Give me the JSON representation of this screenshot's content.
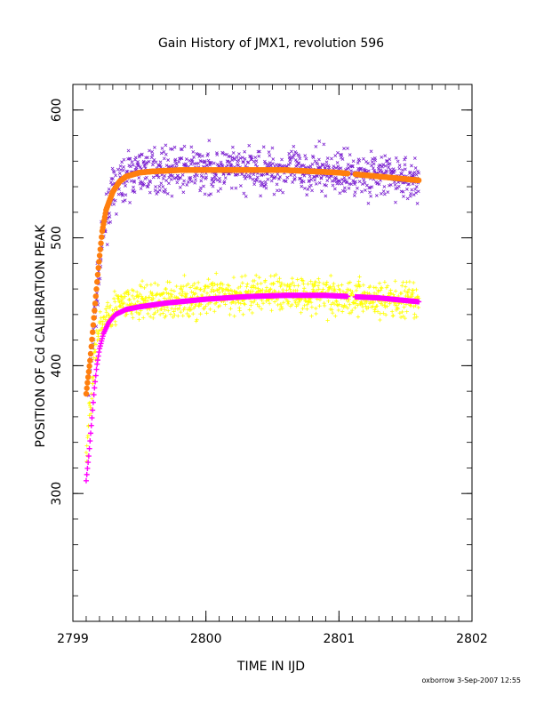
{
  "chart_data": {
    "type": "scatter",
    "title": "Gain History of JMX1, revolution 596",
    "xlabel": "TIME IN IJD",
    "ylabel": "POSITION OF Cd CALIBRATION PEAK",
    "xlim": [
      2799,
      2802
    ],
    "ylim": [
      200,
      620
    ],
    "x_ticks": [
      2799,
      2800,
      2801,
      2802
    ],
    "x_tick_labels": [
      "2799",
      "2800",
      "2801",
      "2802"
    ],
    "y_ticks": [
      300,
      400,
      500,
      600
    ],
    "y_tick_labels": [
      "300",
      "400",
      "500",
      "600"
    ],
    "grid": false,
    "legend": "none",
    "colors": {
      "upper_raw": "#7a1fd0",
      "upper_fit": "#ff7f0e",
      "lower_raw": "#ffff00",
      "lower_fit": "#ff00ff",
      "axis": "#000000"
    },
    "series": [
      {
        "kind": "raw",
        "marker": "x",
        "color_key": "upper_raw",
        "x": [
          2799.12,
          2799.15,
          2799.18,
          2799.21,
          2799.24,
          2799.28,
          2799.33,
          2799.4,
          2799.5,
          2799.6,
          2799.7,
          2799.8,
          2799.9,
          2800.0,
          2800.1,
          2800.2,
          2800.3,
          2800.4,
          2800.5,
          2800.6,
          2800.7,
          2800.8,
          2800.9,
          2801.0,
          2801.1,
          2801.2,
          2801.3,
          2801.4,
          2801.5,
          2801.6
        ],
        "y": [
          385,
          420,
          455,
          485,
          510,
          530,
          540,
          548,
          552,
          553,
          553,
          553,
          553,
          553,
          553,
          553,
          553,
          553,
          553,
          553,
          553,
          552,
          552,
          551,
          551,
          550,
          549,
          548,
          546,
          545
        ],
        "spread": 14
      },
      {
        "kind": "fit",
        "marker": "o",
        "color_key": "upper_fit",
        "x": [
          2799.1,
          2799.13,
          2799.16,
          2799.19,
          2799.22,
          2799.25,
          2799.3,
          2799.35,
          2799.4,
          2799.5,
          2799.6,
          2799.8,
          2800.0,
          2800.2,
          2800.4,
          2800.6,
          2800.8,
          2801.0,
          2801.1,
          2801.2,
          2801.4,
          2801.6
        ],
        "y": [
          378,
          405,
          440,
          475,
          505,
          522,
          536,
          544,
          548,
          551,
          552,
          553,
          553,
          553,
          553,
          553,
          552,
          551,
          550,
          549,
          547,
          545
        ]
      },
      {
        "kind": "raw",
        "marker": "+",
        "color_key": "lower_raw",
        "x": [
          2799.1,
          2799.13,
          2799.16,
          2799.2,
          2799.25,
          2799.3,
          2799.4,
          2799.5,
          2799.6,
          2799.7,
          2799.8,
          2799.9,
          2800.0,
          2800.1,
          2800.2,
          2800.3,
          2800.4,
          2800.5,
          2800.6,
          2800.7,
          2800.8,
          2800.9,
          2801.0,
          2801.1,
          2801.2,
          2801.3,
          2801.4,
          2801.5,
          2801.6
        ],
        "y": [
          325,
          370,
          405,
          425,
          440,
          445,
          448,
          450,
          450,
          451,
          452,
          452,
          453,
          454,
          455,
          456,
          457,
          457,
          457,
          456,
          456,
          455,
          455,
          454,
          453,
          452,
          451,
          450,
          450
        ],
        "spread": 12
      },
      {
        "kind": "fit",
        "marker": "+",
        "color_key": "lower_fit",
        "x": [
          2799.1,
          2799.12,
          2799.14,
          2799.16,
          2799.18,
          2799.2,
          2799.23,
          2799.27,
          2799.32,
          2799.4,
          2799.5,
          2799.7,
          2800.0,
          2800.3,
          2800.6,
          2800.9,
          2801.1,
          2801.3,
          2801.5,
          2801.6
        ],
        "y": [
          310,
          330,
          355,
          380,
          400,
          413,
          425,
          434,
          440,
          444,
          446,
          449,
          452,
          454,
          455,
          455,
          454,
          453,
          451,
          450
        ]
      }
    ]
  },
  "footer": {
    "credit": "oxborrow  3-Sep-2007 12:55"
  }
}
